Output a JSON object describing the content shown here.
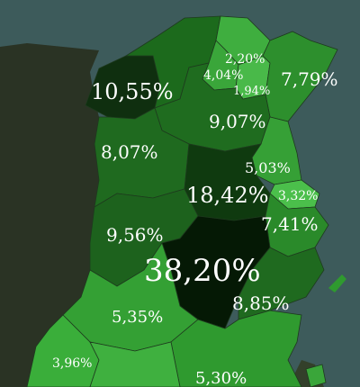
{
  "colors": {
    "sea": "#3d5b5b",
    "algeria": "#2a3324",
    "libya": "#33402a",
    "border": "#1e3a1e"
  },
  "regions": [
    {
      "name": "northwest",
      "value": "10,55%",
      "fill": "#0f2f0f"
    },
    {
      "name": "north-mid",
      "value": "",
      "fill": "#1c6a1c"
    },
    {
      "name": "tunis-area-north",
      "value": "2,20%",
      "fill": "#3fae3f"
    },
    {
      "name": "tunis-area-west",
      "value": "4,04%",
      "fill": "#3aa63a"
    },
    {
      "name": "tunis-area-south",
      "value": "1,94%",
      "fill": "#49b949"
    },
    {
      "name": "cap-bon",
      "value": "7,79%",
      "fill": "#2d8f2d"
    },
    {
      "name": "north-central",
      "value": "9,07%",
      "fill": "#1f6c1f"
    },
    {
      "name": "west-central",
      "value": "8,07%",
      "fill": "#1f6a1f"
    },
    {
      "name": "sahel-north",
      "value": "5,03%",
      "fill": "#36a036"
    },
    {
      "name": "kairouan",
      "value": "18,42%",
      "fill": "#0f3a0f"
    },
    {
      "name": "monastir",
      "value": "3,32%",
      "fill": "#4bbf4b"
    },
    {
      "name": "kasserine",
      "value": "9,56%",
      "fill": "#1d621d"
    },
    {
      "name": "mahdia",
      "value": "7,41%",
      "fill": "#2a8a2a"
    },
    {
      "name": "sidi-bouzid",
      "value": "38,20%",
      "fill": "#051905"
    },
    {
      "name": "sfax",
      "value": "8,85%",
      "fill": "#1f6a1f"
    },
    {
      "name": "gafsa",
      "value": "5,35%",
      "fill": "#34a034"
    },
    {
      "name": "tozeur",
      "value": "3,96%",
      "fill": "#3aae3a"
    },
    {
      "name": "gabes",
      "value": "5,30%",
      "fill": "#2f9a2f"
    },
    {
      "name": "kebili",
      "value": "",
      "fill": "#3fb03f"
    },
    {
      "name": "djerba",
      "value": "",
      "fill": "#3aa63a"
    }
  ]
}
